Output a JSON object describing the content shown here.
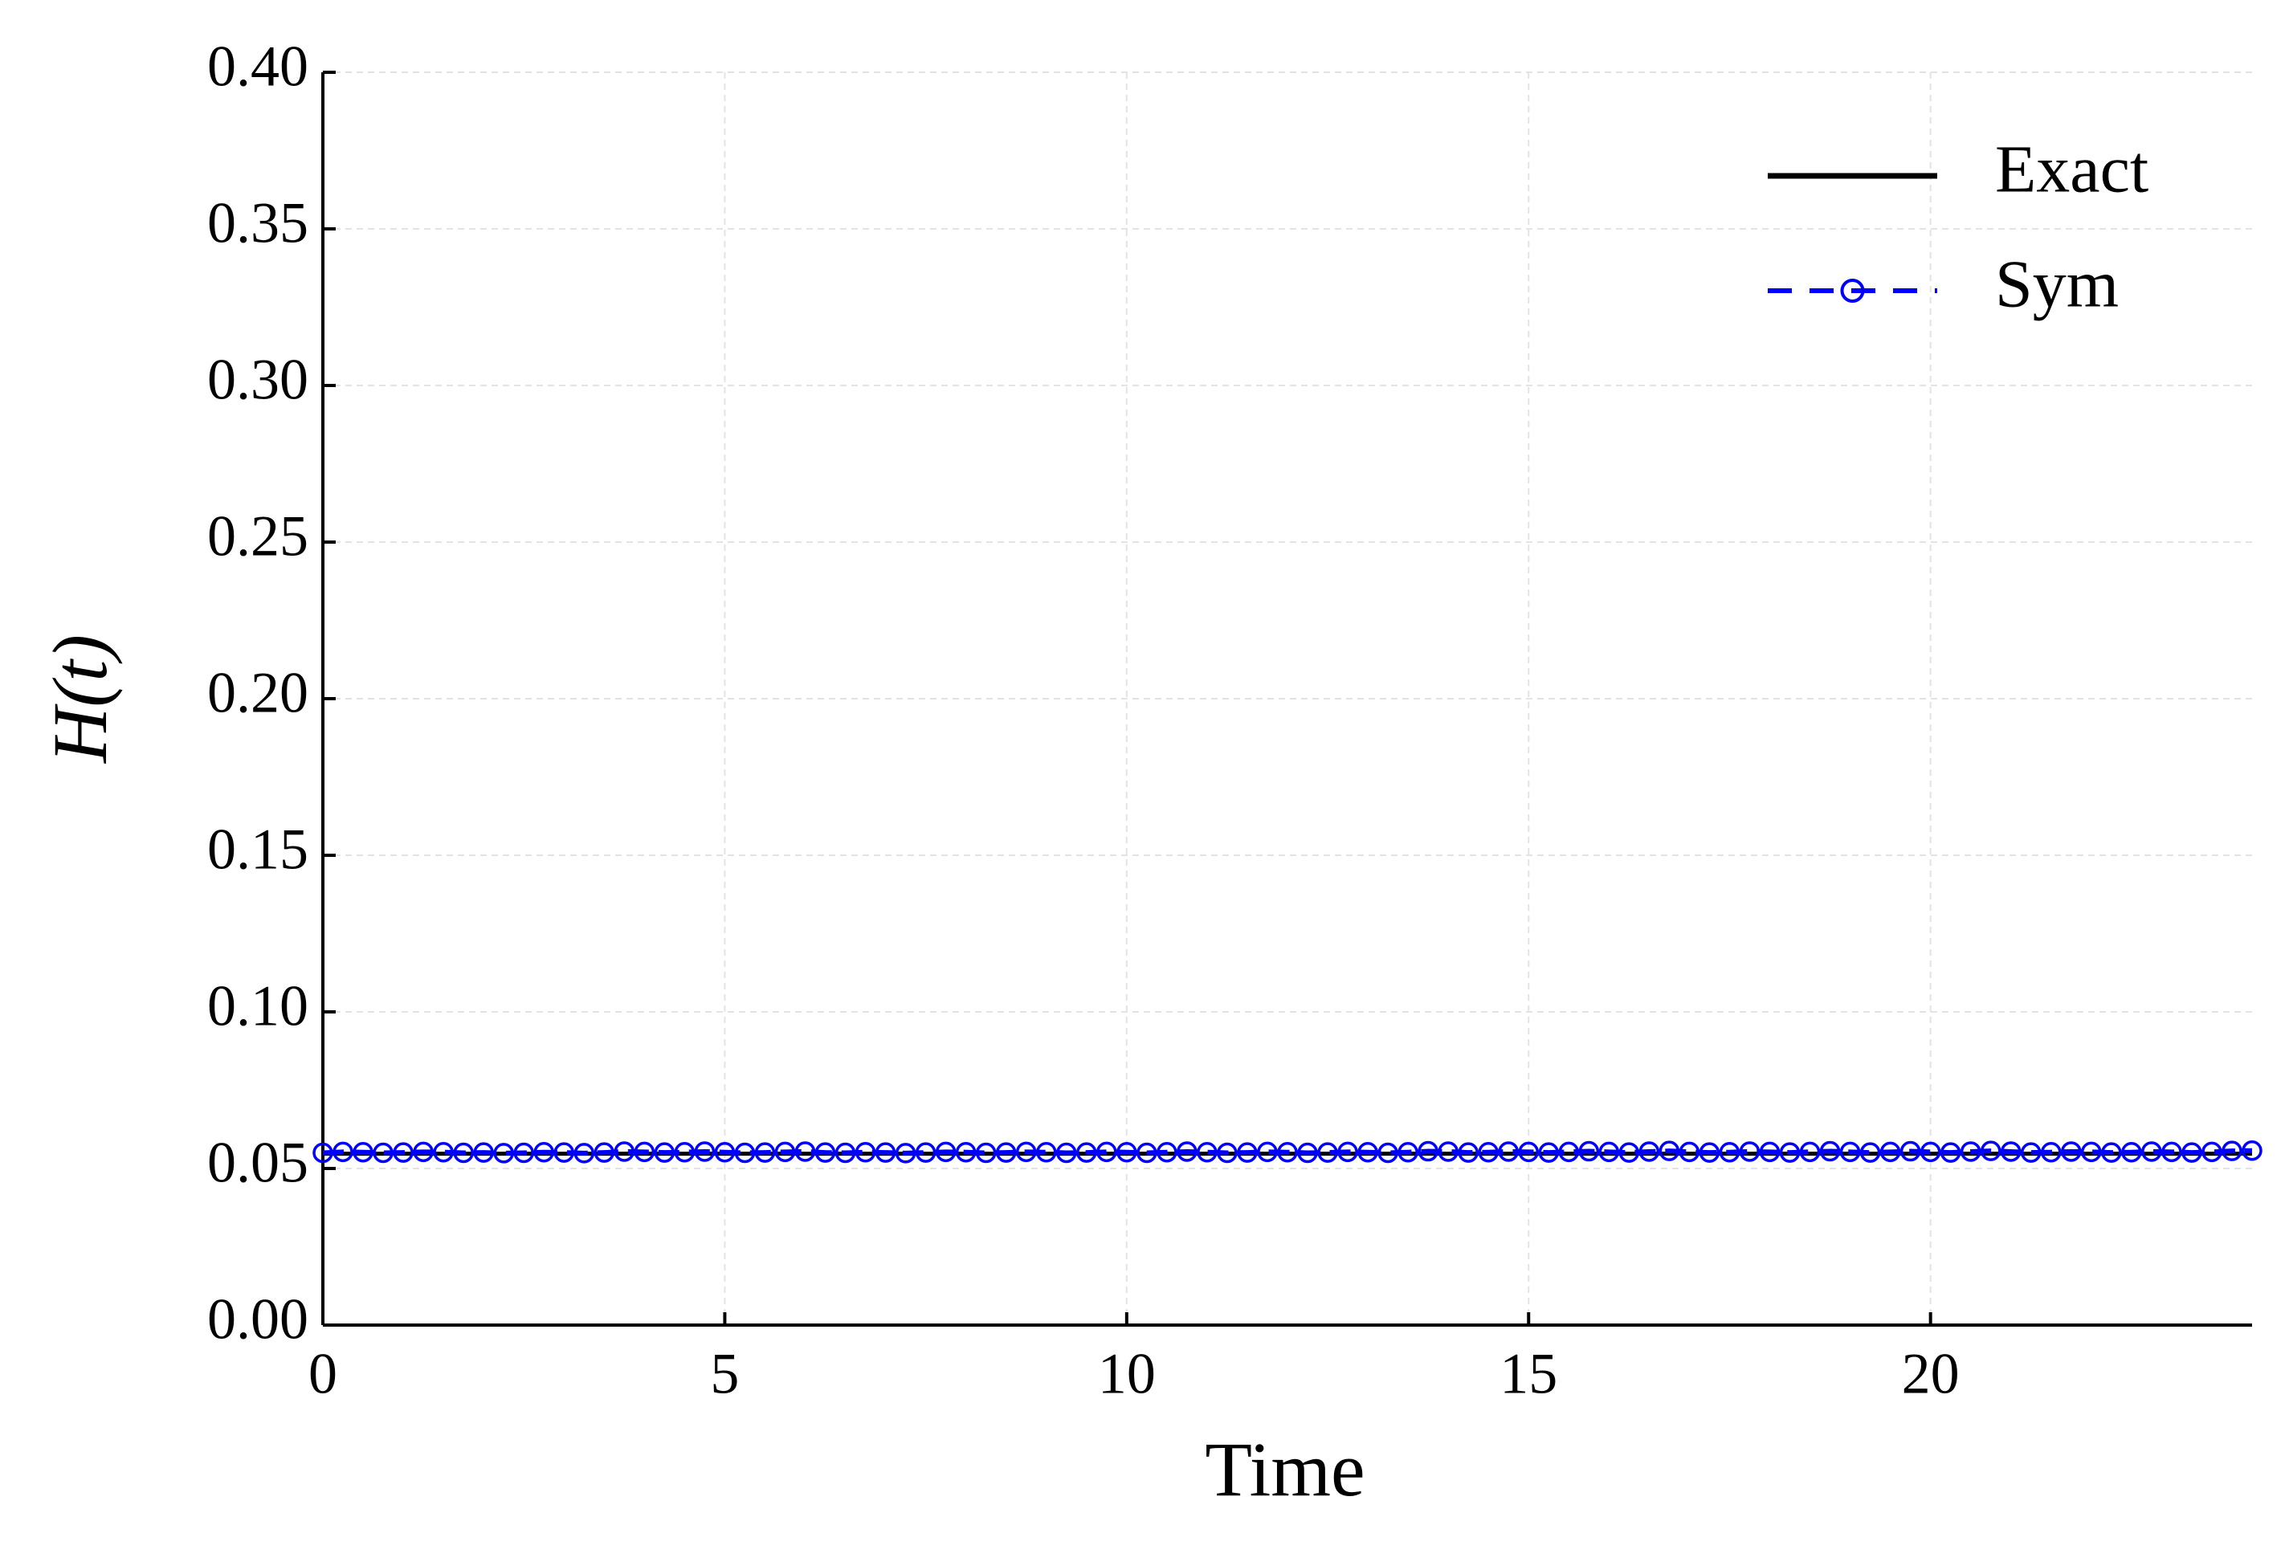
{
  "chart_data": {
    "type": "line",
    "xlabel": "Time",
    "ylabel": "H(t)",
    "xlim": [
      0,
      24
    ],
    "ylim": [
      0,
      0.4
    ],
    "xticks": [
      0,
      5,
      10,
      15,
      20
    ],
    "yticks": [
      {
        "value": 0,
        "label": "0.00"
      },
      {
        "value": 0.05,
        "label": "0.05"
      },
      {
        "value": 0.1,
        "label": "0.10"
      },
      {
        "value": 0.15,
        "label": "0.15"
      },
      {
        "value": 0.2,
        "label": "0.20"
      },
      {
        "value": 0.25,
        "label": "0.25"
      },
      {
        "value": 0.3,
        "label": "0.30"
      },
      {
        "value": 0.35,
        "label": "0.35"
      },
      {
        "value": 0.4,
        "label": "0.40"
      }
    ],
    "grid": true,
    "legend": "upper right",
    "series": [
      {
        "name": "Exact",
        "color": "#000000",
        "style": "solid",
        "x": [
          0,
          24
        ],
        "values": [
          0.0547,
          0.0547
        ]
      },
      {
        "name": "Sym",
        "color": "#0000ff",
        "style": "dashed",
        "marker": "circle",
        "x": [
          0,
          0.25,
          0.5,
          0.75,
          1,
          1.25,
          1.5,
          1.75,
          2,
          2.25,
          2.5,
          2.75,
          3,
          3.25,
          3.5,
          3.75,
          4,
          4.25,
          4.5,
          4.75,
          5,
          5.25,
          5.5,
          5.75,
          6,
          6.25,
          6.5,
          6.75,
          7,
          7.25,
          7.5,
          7.75,
          8,
          8.25,
          8.5,
          8.75,
          9,
          9.25,
          9.5,
          9.75,
          10,
          10.25,
          10.5,
          10.75,
          11,
          11.25,
          11.5,
          11.75,
          12,
          12.25,
          12.5,
          12.75,
          13,
          13.25,
          13.5,
          13.75,
          14,
          14.25,
          14.5,
          14.75,
          15,
          15.25,
          15.5,
          15.75,
          16,
          16.25,
          16.5,
          16.75,
          17,
          17.25,
          17.5,
          17.75,
          18,
          18.25,
          18.5,
          18.75,
          19,
          19.25,
          19.5,
          19.75,
          20,
          20.25,
          20.5,
          20.75,
          21,
          21.25,
          21.5,
          21.75,
          22,
          22.25,
          22.5,
          22.75,
          23,
          23.25,
          23.5,
          23.75,
          24
        ],
        "values": [
          0.055,
          0.0553,
          0.0552,
          0.055,
          0.0551,
          0.0553,
          0.0552,
          0.055,
          0.0551,
          0.0549,
          0.055,
          0.0552,
          0.0551,
          0.0549,
          0.0551,
          0.0554,
          0.0553,
          0.0551,
          0.0552,
          0.0554,
          0.0552,
          0.055,
          0.0551,
          0.0553,
          0.0554,
          0.0551,
          0.055,
          0.0552,
          0.0551,
          0.0549,
          0.0551,
          0.0553,
          0.0552,
          0.055,
          0.0551,
          0.0553,
          0.0552,
          0.055,
          0.0551,
          0.0553,
          0.0552,
          0.055,
          0.0552,
          0.0554,
          0.0552,
          0.055,
          0.0551,
          0.0553,
          0.0552,
          0.055,
          0.0551,
          0.0553,
          0.0552,
          0.055,
          0.0552,
          0.0555,
          0.0554,
          0.0551,
          0.0552,
          0.0554,
          0.0553,
          0.0551,
          0.0553,
          0.0555,
          0.0553,
          0.0551,
          0.0554,
          0.0556,
          0.0553,
          0.0551,
          0.0552,
          0.0554,
          0.0553,
          0.0551,
          0.0553,
          0.0555,
          0.0553,
          0.0551,
          0.0553,
          0.0555,
          0.0553,
          0.0551,
          0.0554,
          0.0556,
          0.0554,
          0.0551,
          0.0552,
          0.0554,
          0.0553,
          0.0551,
          0.0552,
          0.0554,
          0.0553,
          0.0551,
          0.0553,
          0.0556,
          0.0557
        ]
      }
    ]
  }
}
